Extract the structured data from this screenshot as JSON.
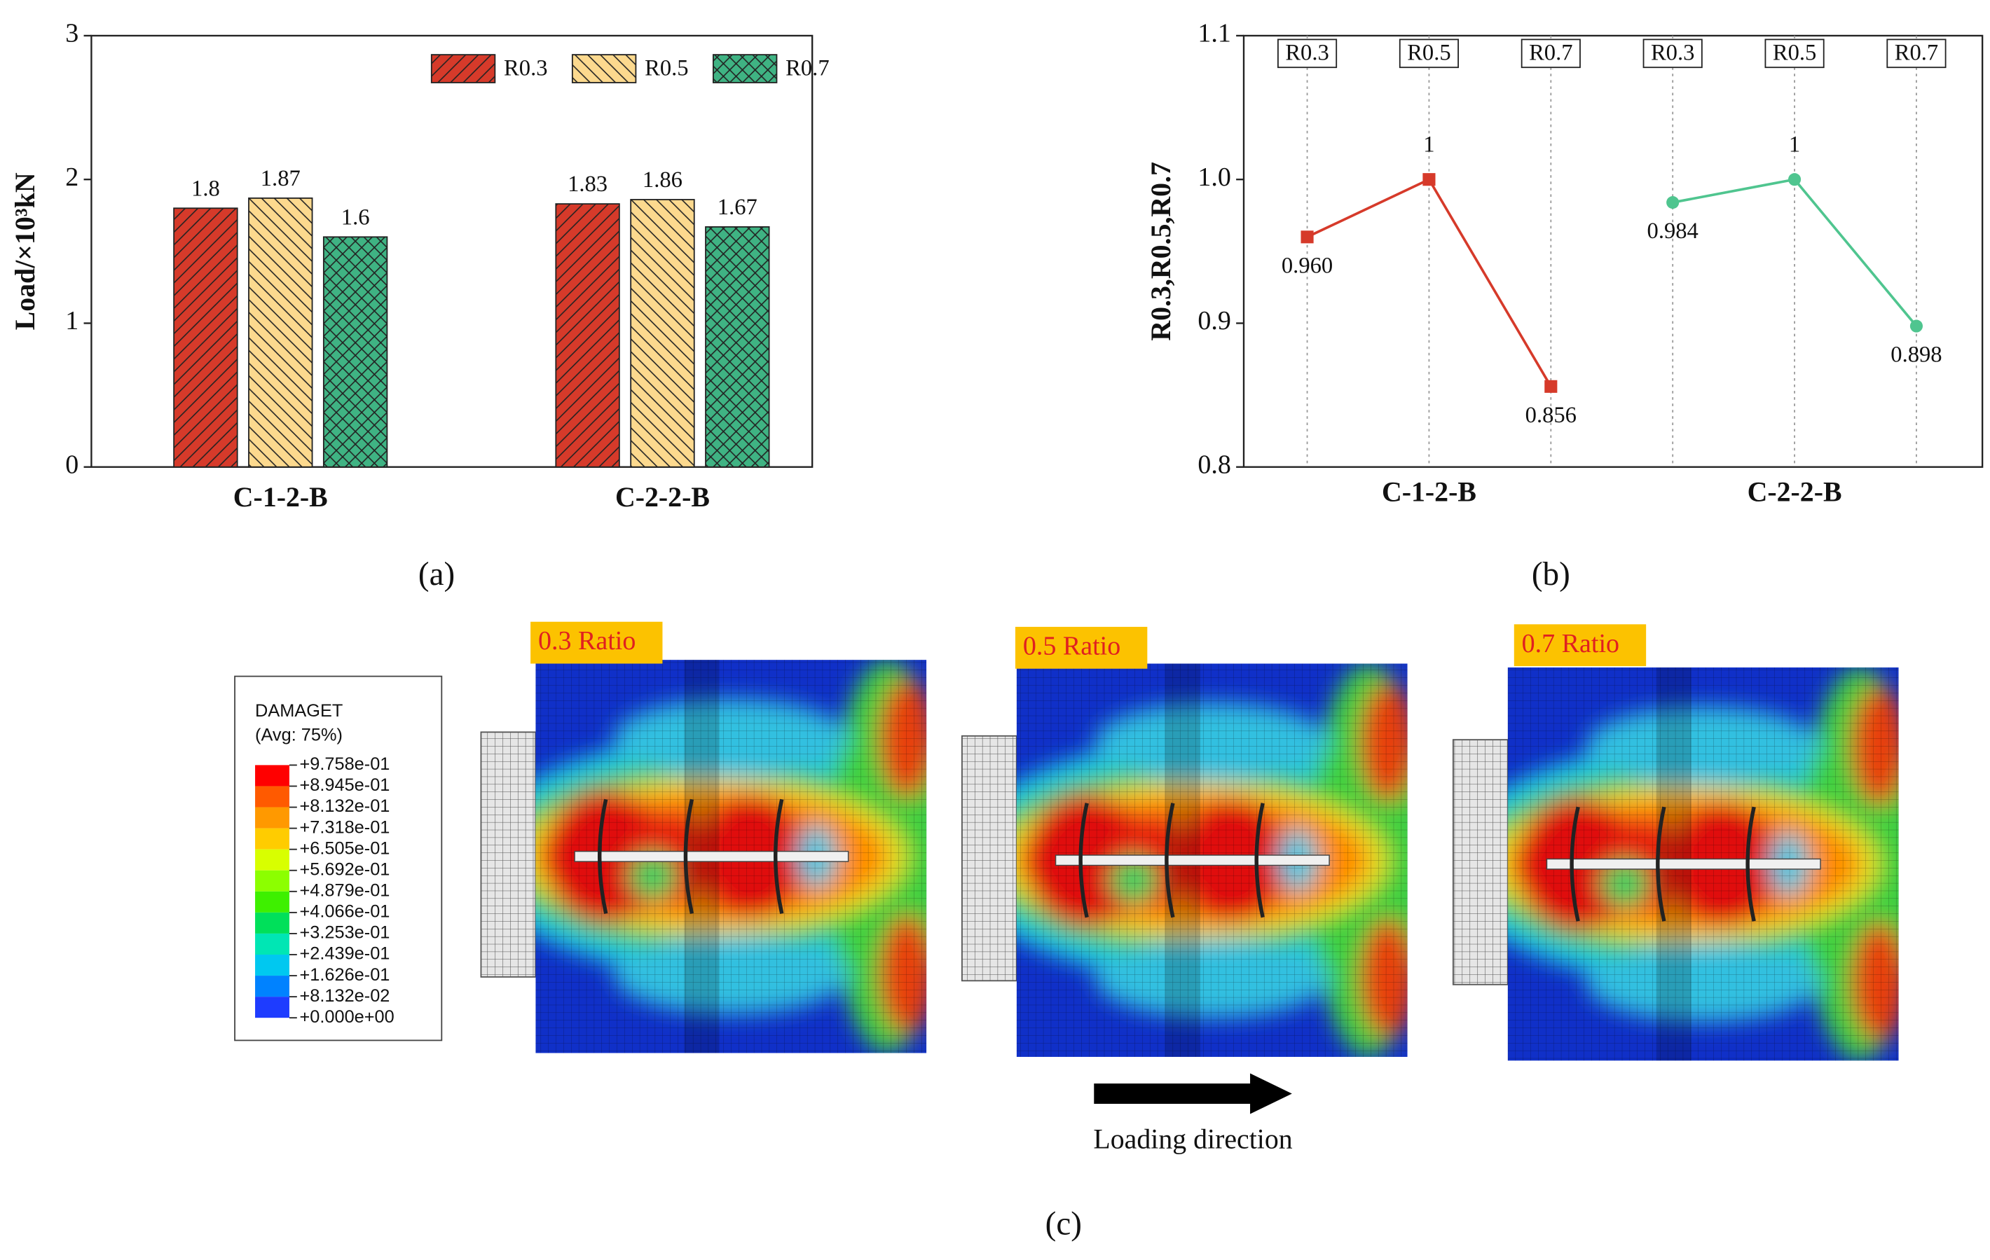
{
  "chart_data": [
    {
      "type": "bar",
      "panel": "(a)",
      "ylabel": "Load/×10³kN",
      "categories": [
        "C-1-2-B",
        "C-2-2-B"
      ],
      "series": [
        {
          "name": "R0.3",
          "color": "#d63a2a",
          "hatch": "/",
          "values": [
            1.8,
            1.83
          ]
        },
        {
          "name": "R0.5",
          "color": "#fcd98e",
          "hatch": "\\",
          "values": [
            1.87,
            1.86
          ]
        },
        {
          "name": "R0.7",
          "color": "#3fb383",
          "hatch": "x",
          "values": [
            1.6,
            1.67
          ]
        }
      ],
      "ylim": [
        0,
        3
      ],
      "yticks": [
        0,
        1,
        2,
        3
      ],
      "legend": "top-right"
    },
    {
      "type": "line",
      "panel": "(b)",
      "ylabel": "R0.3,R0.5,R0.7",
      "categories": [
        "R0.3",
        "R0.5",
        "R0.7",
        "R0.3",
        "R0.5",
        "R0.7"
      ],
      "series": [
        {
          "name": "C-1-2-B",
          "color": "#d63a2a",
          "marker": "square",
          "values": [
            0.96,
            1,
            0.856,
            null,
            null,
            null
          ],
          "value_labels": [
            "0.960",
            "1",
            "0.856",
            null,
            null,
            null
          ]
        },
        {
          "name": "C-2-2-B",
          "color": "#4fc58f",
          "marker": "circle",
          "values": [
            null,
            null,
            null,
            0.984,
            1,
            0.898
          ],
          "value_labels": [
            null,
            null,
            null,
            "0.984",
            "1",
            "0.898"
          ]
        }
      ],
      "ylim": [
        0.8,
        1.1
      ],
      "yticks": [
        {
          "value": 0.8,
          "label": "0.8"
        },
        {
          "value": 0.9,
          "label": "0.9"
        },
        {
          "value": 1.0,
          "label": "1.0"
        },
        {
          "value": 1.1,
          "label": "1.1"
        }
      ],
      "grid": true
    }
  ],
  "figure_c": {
    "panel": "(c)",
    "legend_title": "DAMAGET",
    "legend_subtitle": "(Avg: 75%)",
    "legend_levels": [
      "+9.758e-01",
      "+8.945e-01",
      "+8.132e-01",
      "+7.318e-01",
      "+6.505e-01",
      "+5.692e-01",
      "+4.879e-01",
      "+4.066e-01",
      "+3.253e-01",
      "+2.439e-01",
      "+1.626e-01",
      "+8.132e-02",
      "+0.000e+00"
    ],
    "ratios": [
      "0.3 Ratio",
      "0.5 Ratio",
      "0.7 Ratio"
    ],
    "loading": "Loading direction"
  }
}
